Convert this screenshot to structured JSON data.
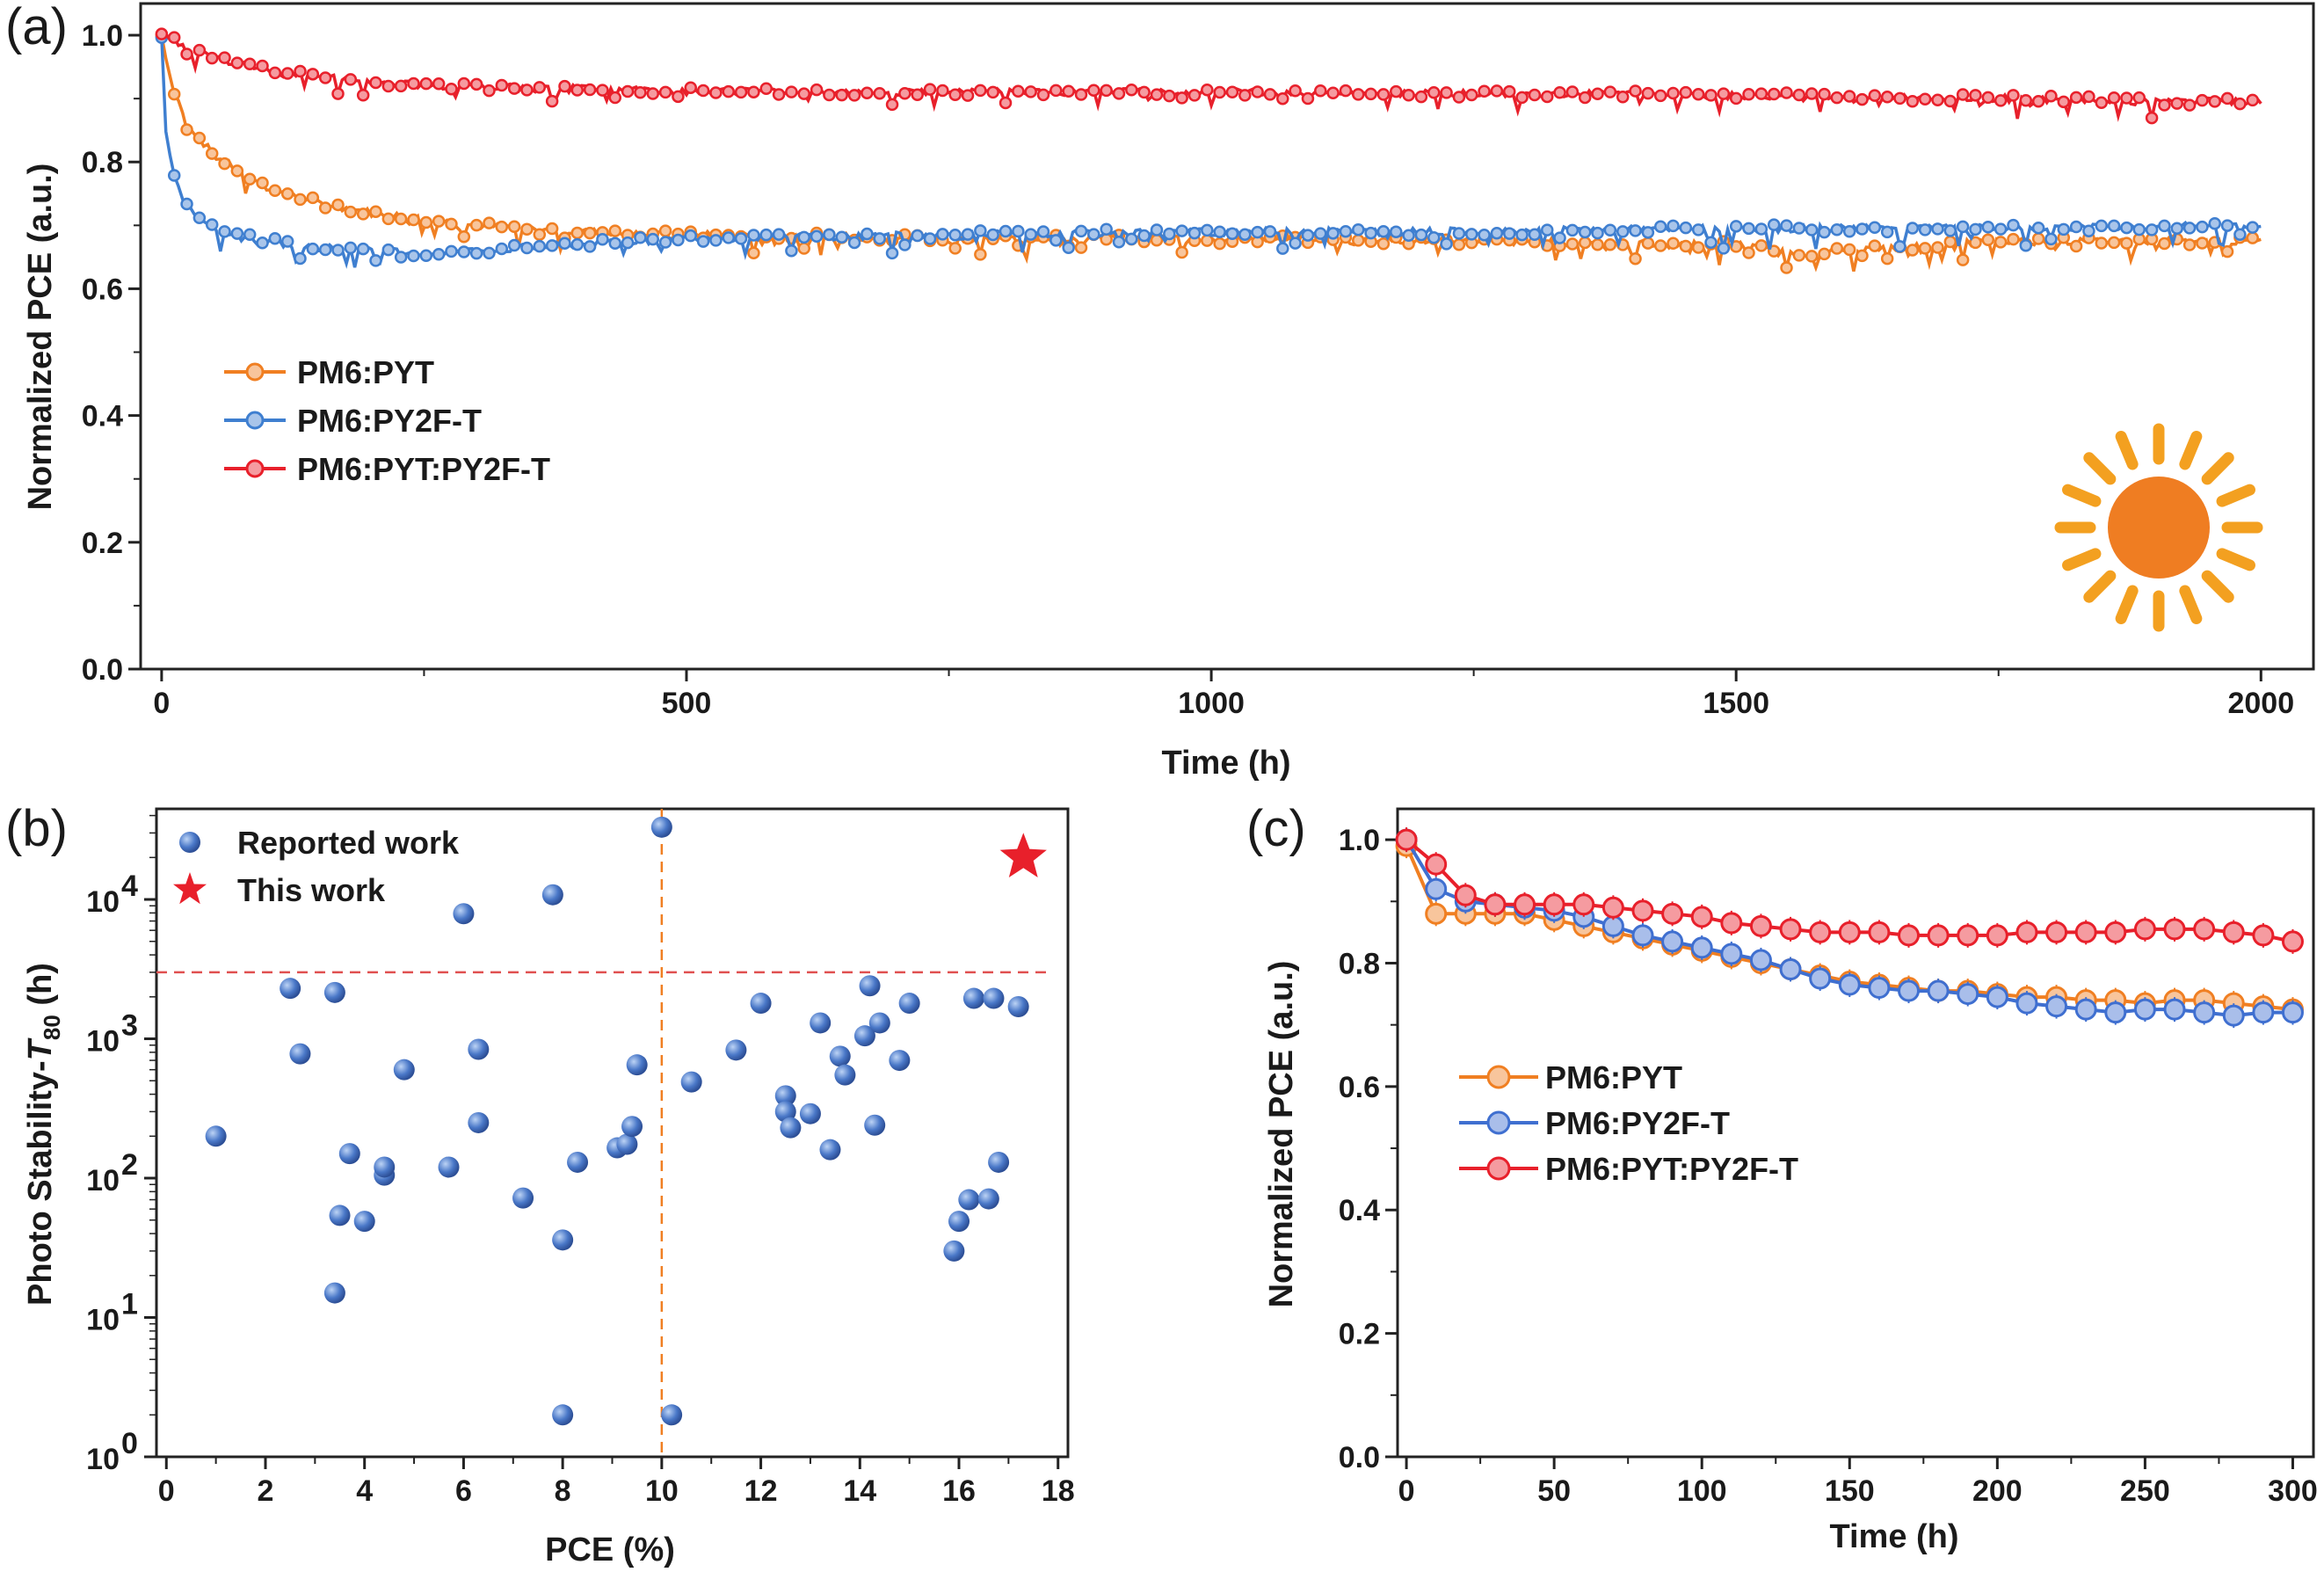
{
  "chart_data": [
    {
      "panel": "(a)",
      "type": "line",
      "xlabel": "Time (h)",
      "ylabel": "Normalized PCE (a.u.)",
      "xlim": [
        -20,
        2050
      ],
      "ylim": [
        0.0,
        1.05
      ],
      "xticks": [
        "0",
        "500",
        "1000",
        "1500",
        "2000"
      ],
      "yticks": [
        "0.0",
        "0.2",
        "0.4",
        "0.6",
        "0.8",
        "1.0"
      ],
      "legend_position": "middle-left",
      "icon": "sun-icon",
      "series": [
        {
          "name": "PM6:PYT",
          "color": "#f07f22",
          "x": [
            0,
            10,
            25,
            50,
            100,
            150,
            200,
            300,
            400,
            500,
            750,
            1000,
            1250,
            1500,
            1550,
            1750,
            2000
          ],
          "y": [
            1.0,
            0.92,
            0.86,
            0.81,
            0.76,
            0.735,
            0.72,
            0.7,
            0.69,
            0.685,
            0.68,
            0.68,
            0.675,
            0.67,
            0.655,
            0.675,
            0.675
          ]
        },
        {
          "name": "PM6:PY2F-T",
          "color": "#3f7fd0",
          "x": [
            0,
            5,
            15,
            30,
            60,
            100,
            150,
            200,
            250,
            300,
            400,
            500,
            750,
            1000,
            1250,
            1500,
            1750,
            2000
          ],
          "y": [
            1.0,
            0.84,
            0.76,
            0.72,
            0.69,
            0.675,
            0.665,
            0.66,
            0.655,
            0.66,
            0.67,
            0.68,
            0.685,
            0.69,
            0.69,
            0.695,
            0.695,
            0.7
          ]
        },
        {
          "name": "PM6:PYT:PY2F-T",
          "color": "#e8202b",
          "x": [
            0,
            20,
            50,
            100,
            150,
            200,
            300,
            400,
            500,
            750,
            1000,
            1250,
            1500,
            1750,
            1900,
            2000
          ],
          "y": [
            1.0,
            0.985,
            0.965,
            0.945,
            0.935,
            0.925,
            0.918,
            0.915,
            0.912,
            0.91,
            0.91,
            0.908,
            0.905,
            0.9,
            0.895,
            0.895
          ]
        }
      ]
    },
    {
      "panel": "(b)",
      "type": "scatter",
      "xlabel": "PCE (%)",
      "ylabel": "Photo Stability-T80 (h)",
      "ylabel_main": "Photo Stability-",
      "ylabel_var": "T",
      "ylabel_sub": "80",
      "ylabel_unit": " (h)",
      "xlim": [
        -0.2,
        18.2
      ],
      "ylim_log10": [
        0,
        4.65
      ],
      "yscale": "log",
      "xticks": [
        "0",
        "2",
        "4",
        "6",
        "8",
        "10",
        "12",
        "14",
        "16",
        "18"
      ],
      "ytick_base": "10",
      "ytick_exps": [
        "0",
        "1",
        "2",
        "3",
        "4"
      ],
      "threshold_x": 10,
      "threshold_y": 3000,
      "series": [
        {
          "name": "Reported work",
          "color": "#4a78c8",
          "points": [
            [
              1.0,
              200
            ],
            [
              2.5,
              2300
            ],
            [
              2.7,
              780
            ],
            [
              3.4,
              2150
            ],
            [
              3.4,
              15
            ],
            [
              3.5,
              54
            ],
            [
              3.7,
              150
            ],
            [
              4.0,
              49
            ],
            [
              4.4,
              105
            ],
            [
              4.4,
              120
            ],
            [
              4.8,
              600
            ],
            [
              5.7,
              120
            ],
            [
              6.0,
              7900
            ],
            [
              6.3,
              840
            ],
            [
              6.3,
              250
            ],
            [
              7.2,
              72
            ],
            [
              7.8,
              10800
            ],
            [
              8.0,
              36
            ],
            [
              8.0,
              2
            ],
            [
              8.3,
              130
            ],
            [
              9.1,
              165
            ],
            [
              9.3,
              175
            ],
            [
              9.4,
              235
            ],
            [
              9.5,
              650
            ],
            [
              10.0,
              33000
            ],
            [
              10.2,
              2
            ],
            [
              10.6,
              490
            ],
            [
              11.5,
              830
            ],
            [
              12.0,
              1800
            ],
            [
              12.5,
              390
            ],
            [
              12.5,
              300
            ],
            [
              12.6,
              230
            ],
            [
              13.0,
              290
            ],
            [
              13.2,
              1300
            ],
            [
              13.4,
              160
            ],
            [
              13.6,
              750
            ],
            [
              13.7,
              550
            ],
            [
              14.1,
              1050
            ],
            [
              14.2,
              2400
            ],
            [
              14.3,
              240
            ],
            [
              14.4,
              1300
            ],
            [
              14.8,
              700
            ],
            [
              15.0,
              1800
            ],
            [
              15.9,
              30
            ],
            [
              16.0,
              49
            ],
            [
              16.2,
              70
            ],
            [
              16.3,
              1950
            ],
            [
              16.6,
              71
            ],
            [
              16.7,
              1950
            ],
            [
              16.8,
              130
            ],
            [
              17.2,
              1700
            ]
          ]
        },
        {
          "name": "This work",
          "color": "#e8202b",
          "marker": "star",
          "points": [
            [
              17.3,
              20000
            ]
          ]
        }
      ],
      "legend_position": "top-left"
    },
    {
      "panel": "(c)",
      "type": "line",
      "xlabel": "Time (h)",
      "ylabel": "Normalized PCE (a.u.)",
      "xlim": [
        -3,
        307
      ],
      "ylim": [
        0.0,
        1.05
      ],
      "xticks": [
        "0",
        "50",
        "100",
        "150",
        "200",
        "250",
        "300"
      ],
      "yticks": [
        "0.0",
        "0.2",
        "0.4",
        "0.6",
        "0.8",
        "1.0"
      ],
      "legend_position": "middle-left",
      "series": [
        {
          "name": "PM6:PYT",
          "color": "#f07f22",
          "x": [
            0,
            10,
            20,
            30,
            40,
            50,
            60,
            70,
            80,
            90,
            100,
            110,
            120,
            130,
            140,
            150,
            160,
            170,
            180,
            190,
            200,
            210,
            220,
            230,
            240,
            250,
            260,
            270,
            280,
            290,
            300
          ],
          "y": [
            0.99,
            0.88,
            0.88,
            0.88,
            0.88,
            0.87,
            0.86,
            0.85,
            0.84,
            0.83,
            0.82,
            0.81,
            0.8,
            0.79,
            0.78,
            0.77,
            0.765,
            0.76,
            0.755,
            0.755,
            0.75,
            0.745,
            0.745,
            0.74,
            0.74,
            0.735,
            0.74,
            0.74,
            0.735,
            0.73,
            0.725
          ]
        },
        {
          "name": "PM6:PY2F-T",
          "color": "#3f6fd0",
          "x": [
            0,
            10,
            20,
            30,
            40,
            50,
            60,
            70,
            80,
            90,
            100,
            110,
            120,
            130,
            140,
            150,
            160,
            170,
            180,
            190,
            200,
            210,
            220,
            230,
            240,
            250,
            260,
            270,
            280,
            290,
            300
          ],
          "y": [
            1.0,
            0.92,
            0.9,
            0.895,
            0.89,
            0.885,
            0.875,
            0.86,
            0.845,
            0.835,
            0.825,
            0.815,
            0.805,
            0.79,
            0.775,
            0.765,
            0.76,
            0.755,
            0.755,
            0.75,
            0.745,
            0.735,
            0.73,
            0.725,
            0.72,
            0.725,
            0.725,
            0.72,
            0.715,
            0.72,
            0.72
          ]
        },
        {
          "name": "PM6:PYT:PY2F-T",
          "color": "#e8202b",
          "x": [
            0,
            10,
            20,
            30,
            40,
            50,
            60,
            70,
            80,
            90,
            100,
            110,
            120,
            130,
            140,
            150,
            160,
            170,
            180,
            190,
            200,
            210,
            220,
            230,
            240,
            250,
            260,
            270,
            280,
            290,
            300
          ],
          "y": [
            1.0,
            0.96,
            0.91,
            0.895,
            0.895,
            0.895,
            0.895,
            0.89,
            0.885,
            0.88,
            0.875,
            0.865,
            0.86,
            0.855,
            0.85,
            0.85,
            0.85,
            0.845,
            0.845,
            0.845,
            0.845,
            0.85,
            0.85,
            0.85,
            0.85,
            0.855,
            0.855,
            0.855,
            0.85,
            0.845,
            0.835
          ]
        }
      ]
    }
  ]
}
